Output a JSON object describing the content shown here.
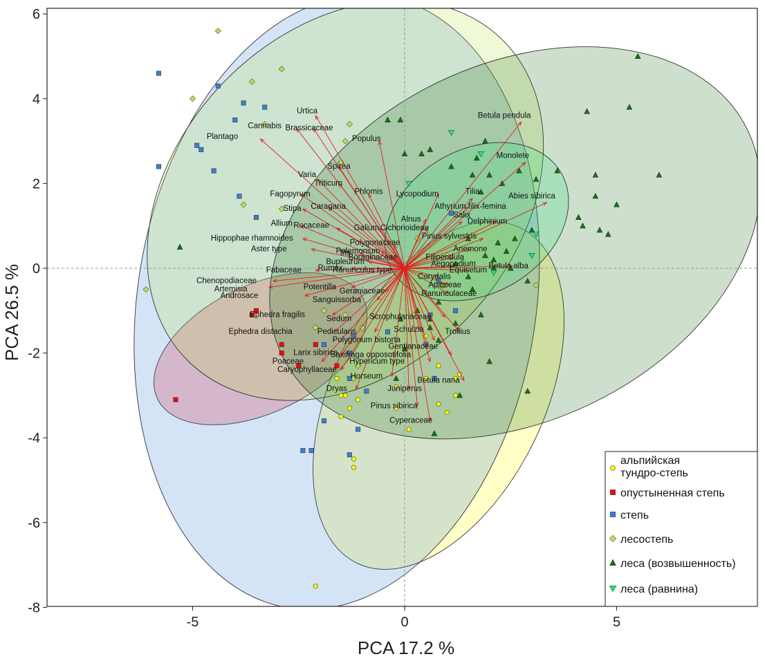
{
  "chart_data": {
    "type": "scatter",
    "xlabel": "PCA 17.2 %",
    "ylabel": "PCA 26.5 %",
    "xlim": [
      -8.5,
      8.5
    ],
    "ylim": [
      -8,
      6.2
    ],
    "xticks": [
      -5,
      0,
      5
    ],
    "yticks": [
      -8,
      -6,
      -4,
      -2,
      0,
      2,
      4,
      6
    ],
    "grid": false,
    "zero_lines": true,
    "legend": "bottom-right",
    "series": [
      {
        "name": "альпийская тундро-степь",
        "marker": "circle",
        "color": "#ffff00",
        "points": [
          [
            1.3,
            -2.5
          ],
          [
            0.5,
            -2.6
          ],
          [
            1.0,
            -3.4
          ],
          [
            0.8,
            -3.2
          ],
          [
            -0.2,
            -3.3
          ],
          [
            0.1,
            -3.8
          ],
          [
            1.2,
            -3.0
          ],
          [
            -0.2,
            -2.8
          ],
          [
            -1.1,
            -3.1
          ],
          [
            -1.3,
            -3.3
          ],
          [
            -1.4,
            -3.0
          ],
          [
            -1.5,
            -3.0
          ],
          [
            -1.6,
            -2.6
          ],
          [
            -1.5,
            -3.5
          ],
          [
            -1.2,
            -4.5
          ],
          [
            -1.2,
            -4.7
          ],
          [
            -2.1,
            -7.5
          ],
          [
            0.5,
            -1.6
          ],
          [
            0.8,
            -2.3
          ],
          [
            1.2,
            -2.6
          ]
        ],
        "ellipse": {
          "cx": 0.8,
          "cy": -3.0,
          "rx": 4.4,
          "ry": 2.5,
          "angle": 64
        }
      },
      {
        "name": "опустыненная степь",
        "marker": "square",
        "color": "#ff0000",
        "points": [
          [
            -3.5,
            -1.0
          ],
          [
            -3.6,
            -1.1
          ],
          [
            -2.9,
            -2.0
          ],
          [
            -5.4,
            -3.1
          ],
          [
            -2.1,
            -1.8
          ],
          [
            -1.6,
            -2.3
          ],
          [
            -2.5,
            -2.3
          ],
          [
            -2.9,
            -1.8
          ]
        ],
        "ellipse": {
          "cx": -3.4,
          "cy": -1.9,
          "rx": 2.7,
          "ry": 1.5,
          "angle": 26
        }
      },
      {
        "name": "степь",
        "marker": "square",
        "color": "#3a7fd5",
        "points": [
          [
            -5.8,
            4.6
          ],
          [
            -4.4,
            4.3
          ],
          [
            -3.8,
            3.9
          ],
          [
            -3.3,
            3.8
          ],
          [
            -4.0,
            3.5
          ],
          [
            -4.9,
            2.9
          ],
          [
            -4.8,
            2.8
          ],
          [
            -5.8,
            2.4
          ],
          [
            -4.5,
            2.3
          ],
          [
            -3.9,
            1.7
          ],
          [
            -3.5,
            1.2
          ],
          [
            -1.9,
            -1.8
          ],
          [
            -1.3,
            -2.6
          ],
          [
            -1.2,
            -1.6
          ],
          [
            -1.3,
            -2.0
          ],
          [
            -1.1,
            -3.8
          ],
          [
            -2.2,
            -4.3
          ],
          [
            -2.4,
            -4.3
          ],
          [
            -1.3,
            -4.4
          ],
          [
            -0.9,
            -2.9
          ],
          [
            -0.4,
            -1.5
          ],
          [
            0.5,
            -1.8
          ],
          [
            0.7,
            -2.6
          ],
          [
            0.8,
            -0.3
          ],
          [
            1.2,
            -1.0
          ],
          [
            1.1,
            1.3
          ],
          [
            0.9,
            -0.4
          ],
          [
            0.6,
            -1.1
          ],
          [
            -1.9,
            -3.6
          ]
        ],
        "ellipse": {
          "cx": -1.6,
          "cy": -0.8,
          "rx": 7.3,
          "ry": 4.7,
          "angle": 81
        }
      },
      {
        "name": "лесостепь",
        "marker": "diamond",
        "color": "#b9e24a",
        "points": [
          [
            -4.4,
            5.6
          ],
          [
            -2.9,
            4.7
          ],
          [
            -3.6,
            4.4
          ],
          [
            -5.0,
            4.0
          ],
          [
            -3.3,
            3.4
          ],
          [
            -1.3,
            3.4
          ],
          [
            -1.4,
            3.0
          ],
          [
            -1.5,
            2.5
          ],
          [
            -3.8,
            1.5
          ],
          [
            -2.9,
            1.4
          ],
          [
            -6.1,
            -0.5
          ],
          [
            -1.9,
            -1.0
          ],
          [
            -2.1,
            -1.4
          ],
          [
            -1.4,
            -1.1
          ],
          [
            -1.0,
            -1.4
          ],
          [
            0.3,
            0.7
          ],
          [
            1.0,
            0.3
          ],
          [
            3.1,
            -0.4
          ],
          [
            0.9,
            -0.4
          ],
          [
            -1.1,
            -2.3
          ],
          [
            -1.2,
            -2.6
          ],
          [
            0.2,
            -1.1
          ]
        ],
        "ellipse": {
          "cx": -1.4,
          "cy": 1.6,
          "rx": 5.3,
          "ry": 4.0,
          "angle": 46
        }
      },
      {
        "name": "леса (возвышенность)",
        "marker": "triangle-up",
        "color": "#1f6e1b",
        "points": [
          [
            5.5,
            5.0
          ],
          [
            4.3,
            3.7
          ],
          [
            5.3,
            3.8
          ],
          [
            -0.4,
            3.5
          ],
          [
            -0.1,
            3.5
          ],
          [
            0.0,
            2.7
          ],
          [
            0.4,
            2.7
          ],
          [
            0.6,
            2.8
          ],
          [
            1.1,
            2.4
          ],
          [
            1.7,
            2.6
          ],
          [
            1.9,
            3.0
          ],
          [
            1.6,
            2.2
          ],
          [
            1.8,
            1.8
          ],
          [
            2.0,
            2.2
          ],
          [
            2.3,
            2.0
          ],
          [
            2.7,
            2.3
          ],
          [
            3.1,
            2.1
          ],
          [
            3.6,
            2.3
          ],
          [
            4.5,
            2.2
          ],
          [
            6.0,
            2.2
          ],
          [
            4.5,
            1.7
          ],
          [
            5.0,
            1.5
          ],
          [
            4.1,
            1.2
          ],
          [
            4.2,
            1.0
          ],
          [
            4.6,
            0.9
          ],
          [
            4.8,
            0.8
          ],
          [
            3.0,
            0.9
          ],
          [
            2.6,
            0.7
          ],
          [
            2.2,
            0.6
          ],
          [
            2.4,
            0.4
          ],
          [
            1.9,
            0.3
          ],
          [
            2.1,
            0.2
          ],
          [
            1.2,
            0.1
          ],
          [
            1.5,
            -0.2
          ],
          [
            1.6,
            -0.5
          ],
          [
            2.1,
            0.0
          ],
          [
            2.5,
            0.0
          ],
          [
            2.9,
            -0.3
          ],
          [
            0.8,
            -0.8
          ],
          [
            1.2,
            -1.3
          ],
          [
            1.8,
            -1.1
          ],
          [
            0.6,
            -1.2
          ],
          [
            0.3,
            -1.0
          ],
          [
            0.6,
            -1.4
          ],
          [
            0.8,
            -1.7
          ],
          [
            -0.1,
            -1.2
          ],
          [
            0.0,
            -1.9
          ],
          [
            2.0,
            -2.2
          ],
          [
            1.3,
            -3.0
          ],
          [
            -0.2,
            -2.6
          ],
          [
            0.7,
            -3.9
          ],
          [
            2.9,
            -2.9
          ],
          [
            -5.3,
            0.5
          ],
          [
            1.5,
            0.7
          ]
        ],
        "ellipse": {
          "cx": 2.6,
          "cy": 0.6,
          "rx": 6.1,
          "ry": 4.2,
          "angle": 26
        }
      },
      {
        "name": "леса (равнина)",
        "marker": "triangle-down",
        "color": "#2fe07d",
        "points": [
          [
            1.1,
            3.2
          ],
          [
            1.8,
            2.7
          ],
          [
            0.1,
            2.0
          ],
          [
            3.1,
            0.8
          ],
          [
            3.0,
            0.3
          ],
          [
            2.1,
            -0.1
          ]
        ],
        "ellipse": {
          "cx": 1.7,
          "cy": 1.1,
          "rx": 2.3,
          "ry": 1.7,
          "angle": 30
        }
      }
    ],
    "arrow_origin": [
      0,
      0
    ],
    "variables": [
      {
        "name": "Betula pendula",
        "x": 2.75,
        "y": 3.45,
        "lx": 2.35,
        "ly": 3.6
      },
      {
        "name": "Monolete",
        "x": 2.85,
        "y": 2.5,
        "lx": 2.55,
        "ly": 2.65
      },
      {
        "name": "Abies sibirica",
        "x": 3.35,
        "y": 1.55,
        "lx": 3.0,
        "ly": 1.7
      },
      {
        "name": "Tilia",
        "x": 1.6,
        "y": 1.65,
        "lx": 1.6,
        "ly": 1.8
      },
      {
        "name": "Athyrium filix-femina",
        "x": 1.5,
        "y": 1.45,
        "lx": 1.55,
        "ly": 1.45
      },
      {
        "name": "Salix",
        "x": 1.35,
        "y": 1.1,
        "lx": 1.35,
        "ly": 1.25
      },
      {
        "name": "Delphinium",
        "x": 2.15,
        "y": 1.1,
        "lx": 1.95,
        "ly": 1.1
      },
      {
        "name": "Pinus sylvestris",
        "x": 1.85,
        "y": 0.7,
        "lx": 1.05,
        "ly": 0.75
      },
      {
        "name": "Anemone",
        "x": 1.55,
        "y": 0.45,
        "lx": 1.55,
        "ly": 0.45
      },
      {
        "name": "Filipendula",
        "x": 1.15,
        "y": 0.25,
        "lx": 0.95,
        "ly": 0.25
      },
      {
        "name": "Aegopodium",
        "x": 1.1,
        "y": 0.05,
        "lx": 1.15,
        "ly": 0.1
      },
      {
        "name": "Equisetum",
        "x": 1.5,
        "y": -0.05,
        "lx": 1.5,
        "ly": -0.05
      },
      {
        "name": "Betula alba",
        "x": 2.55,
        "y": 0.05,
        "lx": 2.45,
        "ly": 0.05
      },
      {
        "name": "Corydalis",
        "x": 0.8,
        "y": -0.2,
        "lx": 0.7,
        "ly": -0.2
      },
      {
        "name": "Apiaceae",
        "x": 1.05,
        "y": -0.4,
        "lx": 0.95,
        "ly": -0.4
      },
      {
        "name": "Ranunculaceae",
        "x": 1.05,
        "y": -0.6,
        "lx": 1.05,
        "ly": -0.6
      },
      {
        "name": "Lycopodium",
        "x": 0.8,
        "y": 1.75,
        "lx": 0.3,
        "ly": 1.75
      },
      {
        "name": "Alnus",
        "x": 0.5,
        "y": 1.15,
        "lx": 0.15,
        "ly": 1.15
      },
      {
        "name": "Cichorioideae",
        "x": 0.55,
        "y": 0.95,
        "lx": 0.0,
        "ly": 0.95
      },
      {
        "name": "Populus",
        "x": -0.6,
        "y": 3.0,
        "lx": -0.9,
        "ly": 3.05
      },
      {
        "name": "Phlomis",
        "x": -0.85,
        "y": 1.75,
        "lx": -0.85,
        "ly": 1.8
      },
      {
        "name": "Urtica",
        "x": -2.1,
        "y": 3.6,
        "lx": -2.3,
        "ly": 3.7
      },
      {
        "name": "Brassicaceae",
        "x": -2.15,
        "y": 3.3,
        "lx": -2.25,
        "ly": 3.3
      },
      {
        "name": "Cannabis",
        "x": -2.55,
        "y": 3.3,
        "lx": -3.3,
        "ly": 3.35
      },
      {
        "name": "Plantago",
        "x": -3.4,
        "y": 3.05,
        "lx": -4.3,
        "ly": 3.1
      },
      {
        "name": "Spirea",
        "x": -1.55,
        "y": 2.4,
        "lx": -1.55,
        "ly": 2.4
      },
      {
        "name": "Varia",
        "x": -2.05,
        "y": 2.1,
        "lx": -2.3,
        "ly": 2.2
      },
      {
        "name": "Triticum",
        "x": -1.55,
        "y": 2.0,
        "lx": -1.8,
        "ly": 2.0
      },
      {
        "name": "Fagopyrum",
        "x": -2.45,
        "y": 1.75,
        "lx": -2.7,
        "ly": 1.75
      },
      {
        "name": "Caragana",
        "x": -1.8,
        "y": 1.45,
        "lx": -1.8,
        "ly": 1.45
      },
      {
        "name": "Stipa",
        "x": -2.4,
        "y": 1.4,
        "lx": -2.65,
        "ly": 1.4
      },
      {
        "name": "Allium",
        "x": -2.45,
        "y": 1.0,
        "lx": -2.9,
        "ly": 1.05
      },
      {
        "name": "Rocaceae",
        "x": -1.6,
        "y": 0.95,
        "lx": -2.2,
        "ly": 1.0
      },
      {
        "name": "Galium",
        "x": -0.6,
        "y": 0.95,
        "lx": -0.9,
        "ly": 0.95
      },
      {
        "name": "Hippophae rhamnoides",
        "x": -2.4,
        "y": 0.7,
        "lx": -3.6,
        "ly": 0.7
      },
      {
        "name": "Polygonaceae",
        "x": -0.25,
        "y": 0.55,
        "lx": -0.7,
        "ly": 0.6
      },
      {
        "name": "Aster type",
        "x": -2.2,
        "y": 0.45,
        "lx": -3.2,
        "ly": 0.45
      },
      {
        "name": "Iris",
        "x": -1.05,
        "y": 0.35,
        "lx": -1.4,
        "ly": 0.35
      },
      {
        "name": "Polemonium",
        "x": -0.55,
        "y": 0.4,
        "lx": -1.1,
        "ly": 0.4
      },
      {
        "name": "Boraginaceae",
        "x": -0.25,
        "y": 0.2,
        "lx": -0.75,
        "ly": 0.25
      },
      {
        "name": "Bupleurum",
        "x": -0.85,
        "y": 0.15,
        "lx": -1.4,
        "ly": 0.15
      },
      {
        "name": "Rumex",
        "x": -1.25,
        "y": 0.0,
        "lx": -1.75,
        "ly": 0.0
      },
      {
        "name": "Ranunculus type",
        "x": 0.1,
        "y": -0.05,
        "lx": -1.0,
        "ly": -0.05
      },
      {
        "name": "Fabaceae",
        "x": -2.1,
        "y": -0.05,
        "lx": -2.85,
        "ly": -0.05
      },
      {
        "name": "Chenopodiaceae",
        "x": -3.1,
        "y": -0.3,
        "lx": -4.2,
        "ly": -0.3
      },
      {
        "name": "Artemisia",
        "x": -3.2,
        "y": -0.45,
        "lx": -4.1,
        "ly": -0.5
      },
      {
        "name": "Androsace",
        "x": -2.35,
        "y": -0.65,
        "lx": -3.9,
        "ly": -0.65
      },
      {
        "name": "Potentilla",
        "x": -1.25,
        "y": -0.45,
        "lx": -2.0,
        "ly": -0.45
      },
      {
        "name": "Geraniaceae",
        "x": -0.45,
        "y": -0.55,
        "lx": -1.0,
        "ly": -0.55
      },
      {
        "name": "Sanguissorba",
        "x": -0.65,
        "y": -0.75,
        "lx": -1.6,
        "ly": -0.75
      },
      {
        "name": "Ephedra fragilis",
        "x": -1.7,
        "y": -1.1,
        "lx": -3.0,
        "ly": -1.1
      },
      {
        "name": "Sedum",
        "x": -0.75,
        "y": -1.2,
        "lx": -1.55,
        "ly": -1.2
      },
      {
        "name": "Scrophulariaceae",
        "x": 0.95,
        "y": -1.15,
        "lx": -0.1,
        "ly": -1.15
      },
      {
        "name": "Schulzia",
        "x": 0.35,
        "y": -1.45,
        "lx": 0.1,
        "ly": -1.45
      },
      {
        "name": "Trollius",
        "x": 1.3,
        "y": -1.5,
        "lx": 1.25,
        "ly": -1.5
      },
      {
        "name": "Ephedra distachia",
        "x": -1.65,
        "y": -1.5,
        "lx": -3.4,
        "ly": -1.5
      },
      {
        "name": "Pedicularis",
        "x": -0.7,
        "y": -1.5,
        "lx": -1.6,
        "ly": -1.5
      },
      {
        "name": "Polygonum bistorta",
        "x": 0.7,
        "y": -1.7,
        "lx": -0.9,
        "ly": -1.7
      },
      {
        "name": "Gentianaceae",
        "x": 0.55,
        "y": -1.85,
        "lx": 0.2,
        "ly": -1.85
      },
      {
        "name": "Larix sibirica",
        "x": -1.5,
        "y": -2.05,
        "lx": -2.1,
        "ly": -2.0
      },
      {
        "name": "Saxifraga opposotifolia",
        "x": 1.1,
        "y": -2.05,
        "lx": -0.8,
        "ly": -2.05
      },
      {
        "name": "Poaceae",
        "x": -1.95,
        "y": -2.2,
        "lx": -2.75,
        "ly": -2.2
      },
      {
        "name": "Hypericum type",
        "x": 0.6,
        "y": -2.2,
        "lx": -0.65,
        "ly": -2.2
      },
      {
        "name": "Caryophyllaceae",
        "x": -1.5,
        "y": -2.4,
        "lx": -2.3,
        "ly": -2.4
      },
      {
        "name": "Horseum",
        "x": -0.3,
        "y": -2.55,
        "lx": -0.9,
        "ly": -2.55
      },
      {
        "name": "Betula nana",
        "x": 1.4,
        "y": -2.65,
        "lx": 0.8,
        "ly": -2.65
      },
      {
        "name": "Dryas",
        "x": -1.15,
        "y": -2.85,
        "lx": -1.6,
        "ly": -2.85
      },
      {
        "name": "Juniperus",
        "x": 0.1,
        "y": -2.85,
        "lx": 0.0,
        "ly": -2.85
      },
      {
        "name": "Pinus sibirica",
        "x": 0.3,
        "y": -3.25,
        "lx": -0.25,
        "ly": -3.25
      },
      {
        "name": "Cyperaceae",
        "x": 0.6,
        "y": -3.6,
        "lx": 0.15,
        "ly": -3.6
      }
    ]
  }
}
